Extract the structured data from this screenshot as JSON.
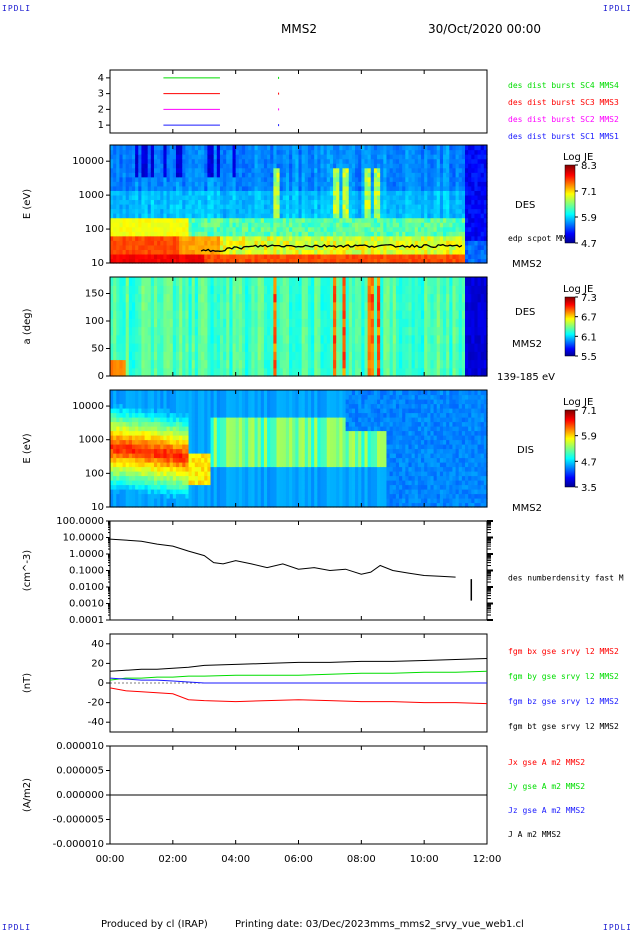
{
  "corner_label": "IPDLI",
  "header": {
    "spacecraft": "MMS2",
    "date": "30/Oct/2020 00:00"
  },
  "footer": {
    "produced_by": "Produced by cl (IRAP)",
    "printing_date": "Printing date: 03/Dec/2023",
    "filename": "mms_mms2_srvy_vue_web1.cl"
  },
  "time_axis": {
    "start_hour": 0,
    "end_hour": 12,
    "ticks": [
      "00:00",
      "02:00",
      "04:00",
      "06:00",
      "08:00",
      "10:00",
      "12:00"
    ]
  },
  "colors": {
    "mms1": "#1a1aff",
    "mms2": "#ff00ff",
    "mms3": "#ff0000",
    "mms4": "#00dd00",
    "black": "#000000"
  },
  "chart_data": [
    {
      "type": "line",
      "panel": "availability",
      "ylim": [
        0.5,
        4.5
      ],
      "y_ticks": [
        "4",
        "3",
        "2",
        "1"
      ],
      "series": [
        {
          "name": "des dist burst SC1 MMS1",
          "y": 1,
          "x": [
            1.7,
            3.5
          ],
          "color": "#1a1aff"
        },
        {
          "name": "des dist burst SC2 MMS2",
          "y": 2,
          "x": [
            1.7,
            3.5
          ],
          "color": "#ff00ff"
        },
        {
          "name": "des dist burst SC3 MMS3",
          "y": 3,
          "x": [
            1.7,
            3.5
          ],
          "color": "#ff0000"
        },
        {
          "name": "des dist burst SC4 MMS4",
          "y": 4,
          "x": [
            1.7,
            3.5
          ],
          "color": "#00dd00"
        }
      ]
    },
    {
      "type": "heatmap",
      "panel": "des-energy",
      "ylabel": "E (eV)",
      "y_scale": "log",
      "ylim": [
        10,
        30000
      ],
      "y_ticks": [
        "10000",
        "1000",
        "100",
        "10"
      ],
      "right_label": "DES",
      "right_sub": "MMS2",
      "overlay_label": "edp scpot MMS2",
      "colorbar": {
        "title": "Log JE",
        "ticks": [
          "8.3",
          "7.1",
          "5.9",
          "4.7"
        ]
      }
    },
    {
      "type": "heatmap",
      "panel": "des-pitch",
      "ylabel": "a (deg)",
      "ylim": [
        0,
        180
      ],
      "y_ticks": [
        "150",
        "100",
        "50",
        "0"
      ],
      "right_label": "DES",
      "right_sub": "MMS2",
      "energy_range": "139-185 eV",
      "colorbar": {
        "title": "Log JE",
        "ticks": [
          "7.3",
          "6.7",
          "6.1",
          "5.5"
        ]
      }
    },
    {
      "type": "heatmap",
      "panel": "dis-energy",
      "ylabel": "E (eV)",
      "y_scale": "log",
      "ylim": [
        10,
        30000
      ],
      "y_ticks": [
        "10000",
        "1000",
        "100",
        "10"
      ],
      "right_label": "DIS",
      "right_sub": "MMS2",
      "colorbar": {
        "title": "Log JE",
        "ticks": [
          "7.1",
          "5.9",
          "4.7",
          "3.5"
        ]
      }
    },
    {
      "type": "line",
      "panel": "density",
      "ylabel": "(cm^-3)",
      "y_scale": "log",
      "ylim": [
        0.0001,
        100
      ],
      "y_ticks": [
        "100.0000",
        "10.0000",
        "1.0000",
        "0.1000",
        "0.0100",
        "0.0010",
        "0.0001"
      ],
      "series": [
        {
          "name": "des numberdensity fast M",
          "x": [
            0.0,
            0.5,
            1.0,
            1.5,
            2.0,
            2.5,
            3.0,
            3.3,
            3.6,
            4.0,
            4.5,
            5.0,
            5.5,
            6.0,
            6.5,
            7.0,
            7.5,
            8.0,
            8.3,
            8.6,
            9.0,
            9.5,
            10.0,
            10.5,
            11.0
          ],
          "y": [
            8.0,
            7.0,
            6.0,
            4.0,
            3.0,
            1.5,
            0.8,
            0.3,
            0.25,
            0.4,
            0.25,
            0.15,
            0.25,
            0.12,
            0.15,
            0.1,
            0.12,
            0.06,
            0.08,
            0.2,
            0.1,
            0.07,
            0.05,
            0.045,
            0.04
          ]
        }
      ]
    },
    {
      "type": "line",
      "panel": "magnetic-field",
      "ylabel": "(nT)",
      "ylim": [
        -50,
        50
      ],
      "y_ticks": [
        "40",
        "20",
        "0",
        "-20",
        "-40"
      ],
      "x": [
        0.0,
        0.5,
        1.0,
        1.5,
        2.0,
        2.5,
        3.0,
        4.0,
        5.0,
        6.0,
        7.0,
        8.0,
        9.0,
        10.0,
        11.0,
        12.0
      ],
      "series": [
        {
          "name": "fgm bx gse srvy l2 MMS2",
          "color": "#ff0000",
          "values": [
            -5,
            -8,
            -9,
            -10,
            -11,
            -17,
            -18,
            -19,
            -18,
            -17,
            -18,
            -19,
            -19,
            -20,
            -20,
            -21
          ]
        },
        {
          "name": "fgm by gse srvy l2 MMS2",
          "color": "#00dd00",
          "values": [
            3,
            5,
            5,
            6,
            6,
            7,
            7,
            8,
            8,
            8,
            9,
            10,
            10,
            11,
            11,
            12
          ]
        },
        {
          "name": "fgm bz gse srvy l2 MMS2",
          "color": "#1a1aff",
          "values": [
            5,
            4,
            3,
            3,
            2,
            1,
            0,
            0,
            0,
            0,
            0,
            0,
            0,
            0,
            0,
            0
          ]
        },
        {
          "name": "fgm bt gse srvy l2 MMS2",
          "color": "#000000",
          "values": [
            12,
            13,
            14,
            14,
            15,
            16,
            18,
            19,
            20,
            21,
            21,
            22,
            22,
            23,
            24,
            25
          ]
        }
      ]
    },
    {
      "type": "line",
      "panel": "current-density",
      "ylabel": "(A/m2)",
      "ylim": [
        -1e-05,
        1e-05
      ],
      "y_ticks": [
        "0.000010",
        "0.000005",
        "0.000000",
        "-0.000005",
        "-0.000010"
      ],
      "x": [
        0,
        12
      ],
      "series": [
        {
          "name": "Jx gse A m2 MMS2",
          "color": "#ff0000",
          "values": [
            0,
            0
          ]
        },
        {
          "name": "Jy gse A m2 MMS2",
          "color": "#00dd00",
          "values": [
            0,
            0
          ]
        },
        {
          "name": "Jz gse A m2 MMS2",
          "color": "#1a1aff",
          "values": [
            0,
            0
          ]
        },
        {
          "name": "J A m2 MMS2",
          "color": "#000000",
          "values": [
            0,
            0
          ]
        }
      ]
    }
  ]
}
